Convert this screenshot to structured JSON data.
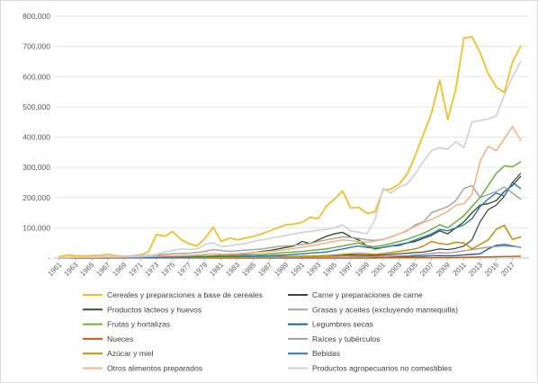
{
  "chart_data": {
    "type": "line",
    "title": "",
    "xlabel": "",
    "ylabel": "",
    "ylim": [
      0,
      800000
    ],
    "y_ticks": [
      "-",
      "100,000",
      "200,000",
      "300,000",
      "400,000",
      "500,000",
      "600,000",
      "700,000",
      "800,000"
    ],
    "x": [
      1961,
      1962,
      1963,
      1964,
      1965,
      1966,
      1967,
      1968,
      1969,
      1970,
      1971,
      1972,
      1973,
      1974,
      1975,
      1976,
      1977,
      1978,
      1979,
      1980,
      1981,
      1982,
      1983,
      1984,
      1985,
      1986,
      1987,
      1988,
      1989,
      1990,
      1991,
      1992,
      1993,
      1994,
      1995,
      1996,
      1997,
      1998,
      1999,
      2000,
      2001,
      2002,
      2003,
      2004,
      2005,
      2006,
      2007,
      2008,
      2009,
      2010,
      2011,
      2012,
      2013,
      2014,
      2015,
      2016,
      2017,
      2018
    ],
    "x_tick_labels": [
      "1961",
      "1963",
      "1965",
      "1967",
      "1969",
      "1971",
      "1973",
      "1975",
      "1977",
      "1979",
      "1981",
      "1983",
      "1985",
      "1987",
      "1989",
      "1991",
      "1993",
      "1995",
      "1997",
      "1999",
      "2001",
      "2003",
      "2005",
      "2007",
      "2009",
      "2011",
      "2013",
      "2015",
      "2017"
    ],
    "gridlines": true,
    "legend_position": "bottom",
    "series": [
      {
        "name": "Cereales y preparaciones a base de cereales",
        "color": "#ECC22F",
        "width": 1.8,
        "values": [
          5000,
          10000,
          8000,
          7000,
          8000,
          9000,
          12000,
          8000,
          6000,
          7000,
          10000,
          20000,
          78000,
          72000,
          88000,
          62000,
          48000,
          40000,
          65000,
          102000,
          55000,
          66000,
          60000,
          66000,
          72000,
          80000,
          90000,
          100000,
          110000,
          112000,
          118000,
          135000,
          130000,
          172000,
          195000,
          222000,
          165000,
          168000,
          148000,
          152000,
          225000,
          228000,
          245000,
          278000,
          340000,
          410000,
          480000,
          588000,
          458000,
          560000,
          728000,
          732000,
          680000,
          610000,
          565000,
          548000,
          648000,
          700000
        ]
      },
      {
        "name": "Carne y preparaciones de carne",
        "color": "#404040",
        "width": 1.2,
        "values": [
          1000,
          1000,
          1000,
          1000,
          1000,
          1000,
          1000,
          1000,
          1000,
          1000,
          2000,
          2000,
          2000,
          2000,
          2000,
          2000,
          2000,
          3000,
          3000,
          3000,
          3000,
          3000,
          3000,
          3000,
          3000,
          4000,
          4000,
          4000,
          5000,
          5000,
          6000,
          6000,
          7000,
          8000,
          9000,
          10000,
          10000,
          10000,
          9000,
          9000,
          10000,
          12000,
          14000,
          16000,
          18000,
          20000,
          25000,
          30000,
          28000,
          32000,
          40000,
          60000,
          120000,
          160000,
          175000,
          205000,
          250000,
          280000
        ]
      },
      {
        "name": "Productos lácteos y huevos",
        "color": "#375623",
        "width": 1.4,
        "values": [
          2000,
          2000,
          3000,
          3000,
          3000,
          4000,
          5000,
          4000,
          4000,
          5000,
          5000,
          6000,
          6000,
          7000,
          6000,
          7000,
          8000,
          9000,
          12000,
          14000,
          10000,
          12000,
          13000,
          15000,
          18000,
          22000,
          25000,
          30000,
          35000,
          40000,
          55000,
          48000,
          60000,
          72000,
          80000,
          85000,
          70000,
          60000,
          40000,
          30000,
          35000,
          40000,
          42000,
          50000,
          55000,
          65000,
          75000,
          90000,
          80000,
          100000,
          120000,
          150000,
          175000,
          180000,
          190000,
          220000,
          240000,
          270000
        ]
      },
      {
        "name": "Grasas y aceites (excluyendo mantequilla)",
        "color": "#A5A5A5",
        "width": 1.5,
        "values": [
          2000,
          2000,
          3000,
          3000,
          4000,
          4000,
          5000,
          5000,
          6000,
          7000,
          8000,
          9000,
          10000,
          12000,
          14000,
          15000,
          16000,
          18000,
          22000,
          28000,
          25000,
          22000,
          24000,
          26000,
          28000,
          30000,
          34000,
          38000,
          40000,
          42000,
          45000,
          48000,
          55000,
          60000,
          65000,
          70000,
          68000,
          65000,
          60000,
          58000,
          62000,
          70000,
          80000,
          90000,
          110000,
          120000,
          150000,
          160000,
          170000,
          190000,
          230000,
          240000,
          200000,
          210000,
          220000,
          235000,
          215000,
          195000
        ]
      },
      {
        "name": "Frutas y hortalizas",
        "color": "#70AD47",
        "width": 1.5,
        "values": [
          1000,
          1000,
          1000,
          2000,
          2000,
          2000,
          2000,
          2000,
          2000,
          3000,
          3000,
          3000,
          4000,
          4000,
          5000,
          5000,
          5000,
          6000,
          6000,
          7000,
          7000,
          8000,
          9000,
          10000,
          11000,
          12000,
          14000,
          16000,
          18000,
          20000,
          22000,
          25000,
          28000,
          30000,
          35000,
          40000,
          45000,
          50000,
          40000,
          38000,
          42000,
          48000,
          55000,
          62000,
          72000,
          82000,
          95000,
          110000,
          100000,
          120000,
          140000,
          170000,
          200000,
          240000,
          280000,
          305000,
          302000,
          318000
        ]
      },
      {
        "name": "Legumbres secas",
        "color": "#255E91",
        "width": 1.4,
        "values": [
          1000,
          1000,
          1000,
          1000,
          1000,
          1000,
          1000,
          1000,
          1000,
          1000,
          1000,
          1000,
          1000,
          1000,
          1000,
          1000,
          1000,
          2000,
          2000,
          2000,
          2000,
          2000,
          2000,
          2000,
          2000,
          2000,
          3000,
          3000,
          3000,
          4000,
          4000,
          5000,
          5000,
          6000,
          6000,
          7000,
          6000,
          5000,
          5000,
          4000,
          4000,
          4000,
          5000,
          5000,
          6000,
          6000,
          7000,
          8000,
          7000,
          8000,
          10000,
          12000,
          14000,
          30000,
          42000,
          45000,
          40000,
          35000
        ]
      },
      {
        "name": "Nueces",
        "color": "#C55A11",
        "width": 1.4,
        "values": [
          0,
          0,
          0,
          0,
          0,
          0,
          0,
          0,
          0,
          0,
          0,
          0,
          0,
          0,
          0,
          0,
          0,
          0,
          0,
          0,
          0,
          0,
          0,
          0,
          0,
          0,
          0,
          0,
          0,
          0,
          0,
          0,
          0,
          0,
          0,
          0,
          0,
          0,
          0,
          0,
          500,
          500,
          500,
          1000,
          1000,
          1000,
          1000,
          1500,
          1500,
          2000,
          2500,
          3000,
          3500,
          4000,
          4500,
          5000,
          5500,
          6000
        ]
      },
      {
        "name": "Raíces y tubérculos",
        "color": "#9E9E9E",
        "width": 1.4,
        "values": [
          500,
          500,
          500,
          500,
          500,
          500,
          500,
          500,
          500,
          1000,
          1000,
          1000,
          1000,
          1000,
          1000,
          1000,
          1000,
          1500,
          1500,
          1500,
          2000,
          2000,
          2000,
          2000,
          2000,
          2000,
          2500,
          2500,
          3000,
          3000,
          3500,
          4000,
          4000,
          5000,
          5000,
          6000,
          6000,
          6000,
          5000,
          5000,
          5000,
          6000,
          7000,
          8000,
          10000,
          12000,
          15000,
          18000,
          16000,
          20000,
          24000,
          28000,
          32000,
          36000,
          38000,
          40000,
          38000,
          36000
        ]
      },
      {
        "name": "Azúcar y miel",
        "color": "#BF9000",
        "width": 1.5,
        "values": [
          1000,
          1000,
          1000,
          1000,
          1000,
          1000,
          1000,
          1000,
          1000,
          2000,
          2000,
          2000,
          2000,
          2000,
          2000,
          2000,
          3000,
          3000,
          3000,
          3000,
          3000,
          3000,
          3000,
          4000,
          4000,
          4000,
          4000,
          5000,
          5000,
          5000,
          6000,
          6000,
          7000,
          8000,
          10000,
          12000,
          14000,
          16000,
          14000,
          12000,
          15000,
          18000,
          22000,
          26000,
          30000,
          40000,
          55000,
          48000,
          45000,
          52000,
          50000,
          30000,
          45000,
          60000,
          95000,
          108000,
          62000,
          70000
        ]
      },
      {
        "name": "Bebidas",
        "color": "#2E75B6",
        "width": 1.4,
        "values": [
          1000,
          1000,
          1000,
          1000,
          1000,
          1000,
          1000,
          2000,
          2000,
          2000,
          2000,
          2000,
          2000,
          3000,
          3000,
          3000,
          3000,
          4000,
          4000,
          5000,
          5000,
          5000,
          5000,
          6000,
          6000,
          7000,
          8000,
          9000,
          10000,
          12000,
          14000,
          16000,
          18000,
          20000,
          25000,
          30000,
          35000,
          40000,
          35000,
          32000,
          35000,
          40000,
          45000,
          50000,
          60000,
          70000,
          80000,
          95000,
          90000,
          100000,
          110000,
          130000,
          170000,
          195000,
          215000,
          205000,
          250000,
          230000
        ]
      },
      {
        "name": "Otros alimentos preparados",
        "color": "#F4B183",
        "width": 1.5,
        "values": [
          1000,
          1000,
          2000,
          2000,
          2000,
          2000,
          3000,
          3000,
          3000,
          4000,
          4000,
          5000,
          6000,
          7000,
          7000,
          8000,
          9000,
          10000,
          12000,
          14000,
          12000,
          13000,
          14000,
          16000,
          18000,
          20000,
          22000,
          25000,
          28000,
          32000,
          36000,
          40000,
          45000,
          50000,
          55000,
          60000,
          58000,
          55000,
          52000,
          56000,
          62000,
          70000,
          80000,
          92000,
          105000,
          118000,
          128000,
          140000,
          155000,
          175000,
          180000,
          210000,
          320000,
          370000,
          355000,
          395000,
          435000,
          390000
        ]
      },
      {
        "name": "Productos agropecuarios no comestibles",
        "color": "#D0D0D0",
        "width": 1.6,
        "values": [
          3000,
          3000,
          4000,
          4000,
          4000,
          5000,
          5000,
          5000,
          6000,
          6000,
          7000,
          8000,
          12000,
          20000,
          25000,
          30000,
          28000,
          30000,
          45000,
          50000,
          38000,
          40000,
          45000,
          48000,
          55000,
          60000,
          65000,
          70000,
          75000,
          80000,
          85000,
          88000,
          92000,
          95000,
          100000,
          110000,
          90000,
          85000,
          80000,
          125000,
          230000,
          215000,
          235000,
          245000,
          280000,
          320000,
          355000,
          365000,
          360000,
          385000,
          365000,
          450000,
          455000,
          460000,
          470000,
          540000,
          598000,
          650000
        ]
      }
    ]
  }
}
